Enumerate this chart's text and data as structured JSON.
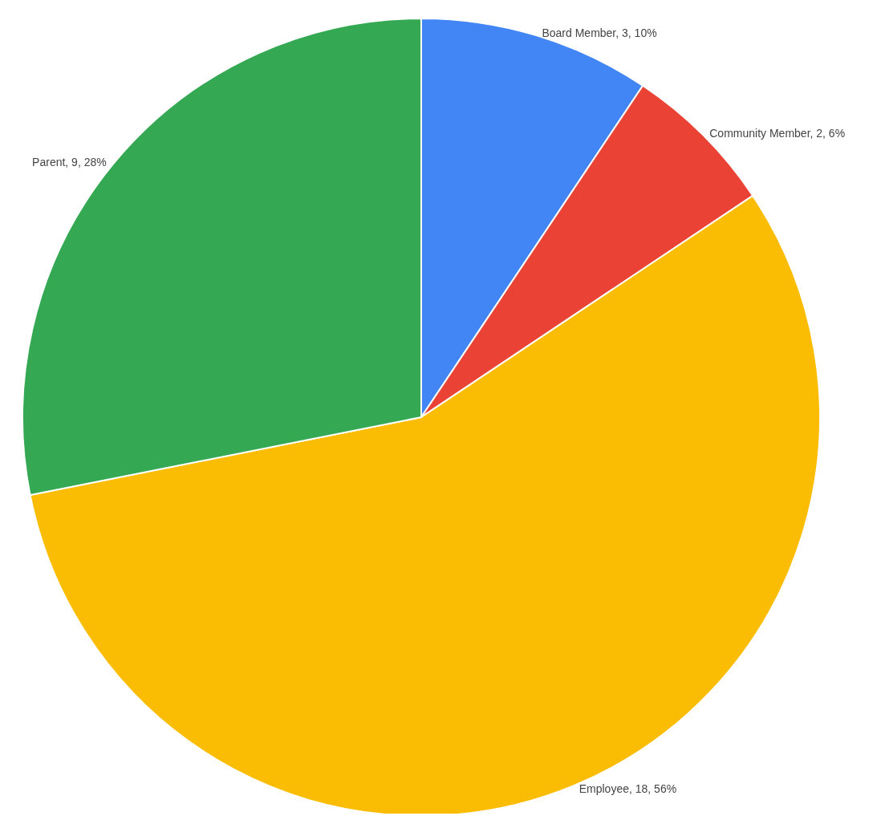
{
  "chart_data": {
    "type": "pie",
    "categories": [
      "Board Member",
      "Community Member",
      "Employee",
      "Parent"
    ],
    "values": [
      3,
      2,
      18,
      9
    ],
    "colors": [
      "#4285f4",
      "#ea4335",
      "#fbbc04",
      "#34a853"
    ],
    "value_labels": [
      "3, 10%",
      "2, 6%",
      "18, 56%",
      "9, 28%"
    ]
  }
}
